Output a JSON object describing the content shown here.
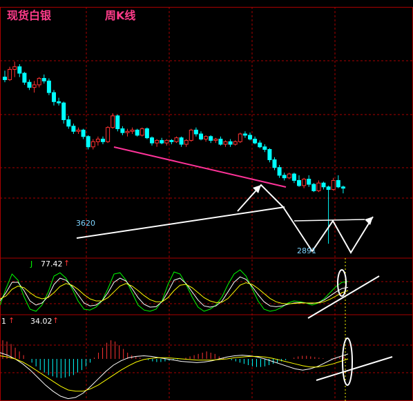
{
  "header": {
    "instrument": "现货白银",
    "period": "周K线"
  },
  "indicators": {
    "kdj": {
      "label": "J",
      "value": "77.42",
      "arrow": "↑"
    },
    "macd": {
      "label": "1",
      "arrow1": "↑",
      "value": "34.02",
      "arrow2": "↑"
    }
  },
  "price_labels": {
    "low_left": "3620",
    "low_right": "2891"
  },
  "colors": {
    "background": "#000000",
    "up_candle": "#ff3333",
    "down_candle": "#00ffff",
    "frame": "#aa0000",
    "title": "#ff3c8a",
    "resistance_line": "#ff3399",
    "support_line": "#ffffff",
    "k_line": "#ffffff",
    "d_line": "#ffff00",
    "j_line": "#00ff00"
  },
  "chart_data": [
    {
      "type": "candlestick",
      "title": "周K线",
      "annotations": [
        "3620",
        "2891"
      ],
      "grid": true,
      "candles": [
        [
          4180,
          4230,
          4140,
          4160
        ],
        [
          4160,
          4260,
          4150,
          4240
        ],
        [
          4240,
          4300,
          4180,
          4260
        ],
        [
          4260,
          4280,
          4180,
          4210
        ],
        [
          4210,
          4220,
          4120,
          4140
        ],
        [
          4140,
          4160,
          4080,
          4100
        ],
        [
          4100,
          4150,
          4060,
          4120
        ],
        [
          4120,
          4180,
          4100,
          4170
        ],
        [
          4170,
          4200,
          4130,
          4150
        ],
        [
          4150,
          4170,
          4040,
          4060
        ],
        [
          4060,
          4080,
          3960,
          3990
        ],
        [
          3990,
          4020,
          3960,
          3980
        ],
        [
          3980,
          3990,
          3820,
          3850
        ],
        [
          3850,
          3880,
          3780,
          3800
        ],
        [
          3800,
          3820,
          3740,
          3760
        ],
        [
          3760,
          3790,
          3740,
          3770
        ],
        [
          3770,
          3780,
          3700,
          3720
        ],
        [
          3720,
          3730,
          3620,
          3640
        ],
        [
          3640,
          3700,
          3620,
          3680
        ],
        [
          3680,
          3720,
          3650,
          3700
        ],
        [
          3700,
          3720,
          3660,
          3680
        ],
        [
          3680,
          3800,
          3670,
          3790
        ],
        [
          3790,
          3900,
          3780,
          3880
        ],
        [
          3880,
          3890,
          3760,
          3780
        ],
        [
          3780,
          3800,
          3730,
          3750
        ],
        [
          3750,
          3780,
          3720,
          3760
        ],
        [
          3760,
          3790,
          3740,
          3770
        ],
        [
          3770,
          3780,
          3720,
          3730
        ],
        [
          3730,
          3790,
          3720,
          3780
        ],
        [
          3780,
          3790,
          3700,
          3710
        ],
        [
          3710,
          3720,
          3650,
          3670
        ],
        [
          3670,
          3700,
          3640,
          3690
        ],
        [
          3690,
          3710,
          3660,
          3670
        ],
        [
          3670,
          3700,
          3650,
          3690
        ],
        [
          3690,
          3700,
          3660,
          3680
        ],
        [
          3680,
          3720,
          3670,
          3710
        ],
        [
          3710,
          3720,
          3640,
          3660
        ],
        [
          3660,
          3700,
          3640,
          3690
        ],
        [
          3690,
          3780,
          3680,
          3770
        ],
        [
          3770,
          3790,
          3720,
          3740
        ],
        [
          3740,
          3760,
          3690,
          3700
        ],
        [
          3700,
          3730,
          3680,
          3720
        ],
        [
          3720,
          3730,
          3670,
          3690
        ],
        [
          3690,
          3710,
          3670,
          3700
        ],
        [
          3700,
          3720,
          3650,
          3660
        ],
        [
          3660,
          3690,
          3640,
          3680
        ],
        [
          3680,
          3700,
          3640,
          3660
        ],
        [
          3660,
          3690,
          3650,
          3680
        ],
        [
          3680,
          3750,
          3670,
          3740
        ],
        [
          3740,
          3760,
          3710,
          3730
        ],
        [
          3730,
          3750,
          3690,
          3700
        ],
        [
          3700,
          3720,
          3660,
          3670
        ],
        [
          3670,
          3690,
          3630,
          3640
        ],
        [
          3640,
          3660,
          3600,
          3620
        ],
        [
          3620,
          3630,
          3520,
          3540
        ],
        [
          3540,
          3560,
          3460,
          3480
        ],
        [
          3480,
          3500,
          3400,
          3420
        ],
        [
          3420,
          3440,
          3380,
          3400
        ],
        [
          3400,
          3440,
          3390,
          3430
        ],
        [
          3430,
          3440,
          3360,
          3380
        ],
        [
          3380,
          3420,
          3330,
          3340
        ],
        [
          3340,
          3400,
          3320,
          3390
        ],
        [
          3390,
          3420,
          3330,
          3350
        ],
        [
          3350,
          3360,
          3290,
          3300
        ],
        [
          3300,
          3380,
          3290,
          3360
        ],
        [
          3360,
          3370,
          3310,
          3330
        ],
        [
          3330,
          3340,
          2890,
          3310
        ],
        [
          3310,
          3400,
          3300,
          3380
        ],
        [
          3380,
          3420,
          3320,
          3330
        ],
        [
          3330,
          3340,
          3280,
          3320
        ]
      ]
    },
    {
      "type": "line",
      "title": "KDJ",
      "series": [
        {
          "name": "J",
          "values": [
            20,
            60,
            95,
            80,
            40,
            10,
            5,
            20,
            50,
            90,
            98,
            85,
            60,
            30,
            10,
            8,
            15,
            30,
            60,
            95,
            98,
            80,
            50,
            20,
            8,
            5,
            10,
            30,
            70,
            100,
            95,
            70,
            40,
            15,
            5,
            10,
            20,
            40,
            70,
            95,
            105,
            90,
            60,
            30,
            10,
            5,
            8,
            15,
            25,
            30,
            28,
            25,
            20,
            25,
            35,
            50,
            65,
            75,
            77
          ]
        },
        {
          "name": "K",
          "values": [
            30,
            50,
            75,
            75,
            55,
            30,
            20,
            25,
            40,
            70,
            85,
            80,
            65,
            45,
            25,
            18,
            20,
            30,
            50,
            75,
            85,
            78,
            60,
            38,
            22,
            15,
            16,
            28,
            52,
            80,
            85,
            72,
            52,
            32,
            18,
            15,
            18,
            30,
            52,
            75,
            88,
            82,
            65,
            45,
            28,
            18,
            16,
            18,
            22,
            25,
            26,
            25,
            24,
            26,
            32,
            42,
            52,
            60,
            63
          ]
        },
        {
          "name": "D",
          "values": [
            35,
            42,
            58,
            66,
            62,
            50,
            40,
            35,
            38,
            50,
            65,
            72,
            68,
            58,
            45,
            35,
            30,
            30,
            38,
            52,
            66,
            72,
            66,
            55,
            43,
            33,
            28,
            28,
            38,
            55,
            68,
            70,
            62,
            50,
            38,
            30,
            26,
            27,
            36,
            52,
            68,
            74,
            70,
            60,
            48,
            36,
            28,
            24,
            23,
            24,
            25,
            25,
            25,
            25,
            28,
            34,
            42,
            50,
            55
          ]
        }
      ]
    },
    {
      "type": "bar",
      "title": "MACD",
      "annotations": [
        "34.02"
      ],
      "values": [
        30,
        28,
        24,
        18,
        12,
        6,
        0,
        -6,
        -12,
        -18,
        -22,
        -26,
        -28,
        -30,
        -31,
        -30,
        -28,
        -26,
        -22,
        -18,
        -12,
        -6,
        2,
        10,
        18,
        26,
        30,
        28,
        22,
        16,
        10,
        6,
        4,
        2,
        0,
        -2,
        -4,
        -5,
        -5,
        -4,
        -3,
        -2,
        -1,
        0,
        2,
        4,
        6,
        8,
        10,
        12,
        10,
        8,
        4,
        2,
        0,
        -2,
        -4,
        -6,
        -8,
        -10,
        -12,
        -13,
        -13,
        -12,
        -10,
        -8,
        -6,
        -4,
        -2,
        0,
        2,
        4,
        5,
        5,
        4,
        3,
        2,
        1,
        0,
        1,
        2,
        3,
        4
      ],
      "series": [
        {
          "name": "DIF",
          "values": [
            10,
            6,
            0,
            -8,
            -18,
            -30,
            -42,
            -52,
            -60,
            -64,
            -62,
            -55,
            -44,
            -32,
            -20,
            -10,
            -3,
            2,
            4,
            5,
            4,
            2,
            0,
            -2,
            -4,
            -5,
            -6,
            -5,
            -3,
            0,
            3,
            5,
            6,
            5,
            3,
            0,
            -4,
            -8,
            -12,
            -16,
            -18,
            -16,
            -12,
            -6,
            0,
            4,
            8
          ]
        },
        {
          "name": "DEA",
          "values": [
            5,
            3,
            0,
            -5,
            -12,
            -20,
            -28,
            -36,
            -44,
            -50,
            -52,
            -52,
            -48,
            -42,
            -34,
            -26,
            -18,
            -11,
            -5,
            -1,
            1,
            2,
            2,
            1,
            0,
            -1,
            -2,
            -2,
            -2,
            -1,
            0,
            2,
            3,
            4,
            4,
            3,
            1,
            -2,
            -5,
            -8,
            -11,
            -13,
            -13,
            -11,
            -8,
            -4,
            0
          ]
        }
      ]
    }
  ]
}
